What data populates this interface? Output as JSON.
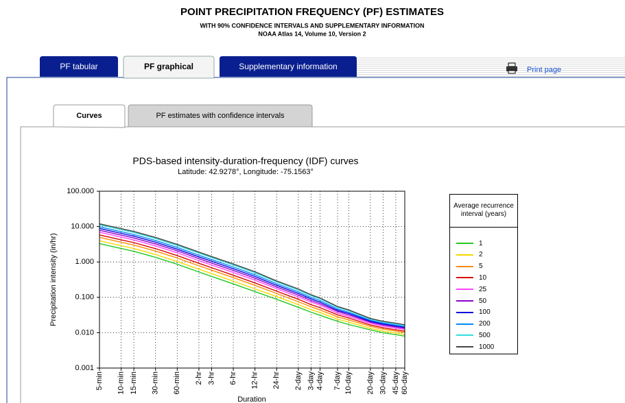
{
  "header": {
    "title": "POINT PRECIPITATION FREQUENCY (PF) ESTIMATES",
    "subtitle": "WITH 90% CONFIDENCE INTERVALS AND SUPPLEMENTARY INFORMATION",
    "version": "NOAA Atlas 14, Volume 10, Version 2"
  },
  "tabs": [
    "PF tabular",
    "PF graphical",
    "Supplementary information"
  ],
  "print_link": "Print page",
  "subtabs": [
    "Curves",
    "PF estimates with confidence intervals"
  ],
  "chart_data": {
    "type": "line",
    "title": "PDS-based intensity-duration-frequency (IDF) curves",
    "subtitle": "Latitude: 42.9278°, Longitude: -75.1563°",
    "xlabel": "Duration",
    "ylabel": "Precipitation intensity (in/hr)",
    "legend_title": "Average recurrence interval (years)",
    "x": [
      5,
      10,
      15,
      30,
      60,
      120,
      180,
      360,
      720,
      1440,
      2880,
      4320,
      5760,
      10080,
      14400,
      28800,
      43200,
      64800,
      86400
    ],
    "xlim": [
      5,
      86400
    ],
    "xlog": true,
    "xticks": [
      {
        "value": 5,
        "label": "5-min"
      },
      {
        "value": 10,
        "label": "10-min"
      },
      {
        "value": 15,
        "label": "15-min"
      },
      {
        "value": 30,
        "label": "30-min"
      },
      {
        "value": 60,
        "label": "60-min"
      },
      {
        "value": 120,
        "label": "2-hr"
      },
      {
        "value": 180,
        "label": "3-hr"
      },
      {
        "value": 360,
        "label": "6-hr"
      },
      {
        "value": 720,
        "label": "12-hr"
      },
      {
        "value": 1440,
        "label": "24-hr"
      },
      {
        "value": 2880,
        "label": "2-day"
      },
      {
        "value": 4320,
        "label": "3-day"
      },
      {
        "value": 5760,
        "label": "4-day"
      },
      {
        "value": 10080,
        "label": "7-day"
      },
      {
        "value": 14400,
        "label": "10-day"
      },
      {
        "value": 28800,
        "label": "20-day"
      },
      {
        "value": 43200,
        "label": "30-day"
      },
      {
        "value": 64800,
        "label": "45-day"
      },
      {
        "value": 86400,
        "label": "60-day"
      }
    ],
    "ylim": [
      0.001,
      100
    ],
    "ylog": true,
    "yticks": [
      {
        "value": 100,
        "label": "100.000"
      },
      {
        "value": 10,
        "label": "10.000"
      },
      {
        "value": 1,
        "label": "1.000"
      },
      {
        "value": 0.1,
        "label": "0.100"
      },
      {
        "value": 0.01,
        "label": "0.010"
      },
      {
        "value": 0.001,
        "label": "0.001"
      }
    ],
    "grid": true,
    "series": [
      {
        "name": "1",
        "color": "#22c822",
        "values": [
          3.3,
          2.4,
          2.0,
          1.35,
          0.86,
          0.52,
          0.39,
          0.24,
          0.145,
          0.088,
          0.052,
          0.038,
          0.031,
          0.021,
          0.017,
          0.012,
          0.01,
          0.0088,
          0.008
        ]
      },
      {
        "name": "2",
        "color": "#f5d800",
        "values": [
          3.96,
          2.88,
          2.4,
          1.62,
          1.03,
          0.624,
          0.468,
          0.288,
          0.174,
          0.105,
          0.062,
          0.045,
          0.037,
          0.024,
          0.02,
          0.0133,
          0.0111,
          0.0098,
          0.0089
        ]
      },
      {
        "name": "5",
        "color": "#ff8c00",
        "values": [
          4.95,
          3.6,
          3.0,
          2.03,
          1.29,
          0.78,
          0.585,
          0.36,
          0.218,
          0.128,
          0.075,
          0.054,
          0.044,
          0.028,
          0.023,
          0.0151,
          0.0126,
          0.0111,
          0.0101
        ]
      },
      {
        "name": "10",
        "color": "#d80000",
        "values": [
          5.81,
          4.22,
          3.52,
          2.38,
          1.51,
          0.915,
          0.686,
          0.422,
          0.255,
          0.149,
          0.088,
          0.062,
          0.051,
          0.032,
          0.026,
          0.0166,
          0.0138,
          0.0121,
          0.011
        ]
      },
      {
        "name": "25",
        "color": "#ff44ff",
        "values": [
          6.93,
          5.04,
          4.2,
          2.84,
          1.81,
          1.09,
          0.819,
          0.504,
          0.305,
          0.175,
          0.103,
          0.073,
          0.06,
          0.036,
          0.029,
          0.0184,
          0.0153,
          0.0135,
          0.0122
        ]
      },
      {
        "name": "50",
        "color": "#8a00cc",
        "values": [
          7.89,
          5.74,
          4.78,
          3.23,
          2.06,
          1.24,
          0.932,
          0.574,
          0.347,
          0.196,
          0.116,
          0.081,
          0.066,
          0.04,
          0.032,
          0.0198,
          0.0165,
          0.0145,
          0.0132
        ]
      },
      {
        "name": "100",
        "color": "#0000dd",
        "values": [
          8.84,
          6.43,
          5.36,
          3.62,
          2.3,
          1.39,
          1.05,
          0.643,
          0.389,
          0.218,
          0.129,
          0.09,
          0.073,
          0.043,
          0.035,
          0.0211,
          0.0176,
          0.0155,
          0.0141
        ]
      },
      {
        "name": "200",
        "color": "#0088ff",
        "values": [
          9.87,
          7.18,
          5.98,
          4.04,
          2.57,
          1.55,
          1.17,
          0.718,
          0.434,
          0.242,
          0.143,
          0.099,
          0.081,
          0.047,
          0.038,
          0.0224,
          0.0187,
          0.0165,
          0.015
        ]
      },
      {
        "name": "500",
        "color": "#33dddd",
        "values": [
          11.2,
          8.16,
          6.8,
          4.59,
          2.92,
          1.77,
          1.33,
          0.816,
          0.493,
          0.272,
          0.161,
          0.111,
          0.091,
          0.052,
          0.042,
          0.0242,
          0.0202,
          0.0178,
          0.0162
        ]
      },
      {
        "name": "1000",
        "color": "#444444",
        "values": [
          12.0,
          8.76,
          7.3,
          4.93,
          3.14,
          1.9,
          1.42,
          0.876,
          0.529,
          0.29,
          0.172,
          0.118,
          0.096,
          0.055,
          0.044,
          0.0252,
          0.021,
          0.0185,
          0.0168
        ]
      }
    ]
  }
}
